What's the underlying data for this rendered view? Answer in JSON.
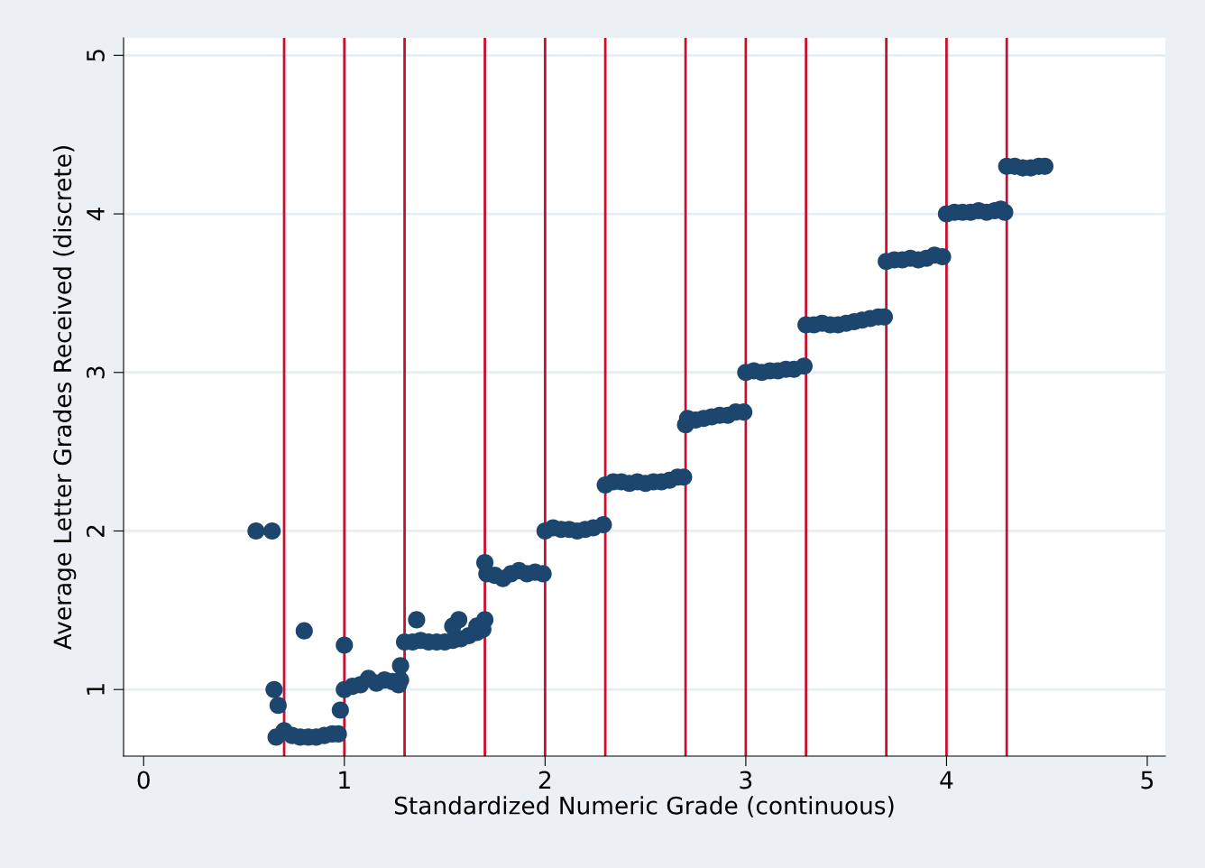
{
  "chart_data": {
    "type": "scatter",
    "xlabel": "Standardized Numeric Grade (continuous)",
    "ylabel": "Average Letter Grades Received (discrete)",
    "x": [
      0.56,
      0.64,
      0.65,
      0.67,
      0.8,
      0.98,
      1.0,
      1.28,
      1.36,
      1.54,
      1.57,
      1.66,
      1.7,
      0.66,
      0.7,
      0.74,
      0.78,
      0.82,
      0.86,
      0.9,
      0.94,
      0.97,
      1.0,
      1.04,
      1.08,
      1.12,
      1.16,
      1.2,
      1.24,
      1.27,
      1.28,
      1.3,
      1.34,
      1.38,
      1.42,
      1.46,
      1.5,
      1.54,
      1.58,
      1.62,
      1.66,
      1.69,
      1.7,
      1.71,
      1.75,
      1.79,
      1.83,
      1.87,
      1.91,
      1.95,
      1.99,
      2.0,
      2.04,
      2.08,
      2.12,
      2.16,
      2.2,
      2.24,
      2.29,
      2.3,
      2.34,
      2.38,
      2.42,
      2.46,
      2.5,
      2.54,
      2.58,
      2.62,
      2.66,
      2.69,
      2.7,
      2.71,
      2.75,
      2.79,
      2.83,
      2.87,
      2.91,
      2.95,
      2.99,
      3.0,
      3.04,
      3.08,
      3.12,
      3.16,
      3.2,
      3.24,
      3.29,
      3.3,
      3.34,
      3.38,
      3.42,
      3.46,
      3.5,
      3.54,
      3.58,
      3.62,
      3.66,
      3.69,
      3.7,
      3.74,
      3.78,
      3.82,
      3.86,
      3.9,
      3.94,
      3.98,
      4.0,
      4.04,
      4.08,
      4.12,
      4.16,
      4.2,
      4.24,
      4.27,
      4.29,
      4.3,
      4.34,
      4.38,
      4.42,
      4.46,
      4.49
    ],
    "values": [
      2.0,
      2.0,
      1.0,
      0.9,
      1.37,
      0.87,
      1.28,
      1.15,
      1.44,
      1.4,
      1.44,
      1.4,
      1.44,
      0.7,
      0.74,
      0.71,
      0.7,
      0.7,
      0.7,
      0.71,
      0.72,
      0.72,
      1.0,
      1.02,
      1.03,
      1.07,
      1.04,
      1.06,
      1.05,
      1.03,
      1.06,
      1.3,
      1.3,
      1.31,
      1.3,
      1.3,
      1.3,
      1.31,
      1.32,
      1.34,
      1.36,
      1.38,
      1.8,
      1.73,
      1.72,
      1.7,
      1.73,
      1.75,
      1.73,
      1.74,
      1.73,
      2.0,
      2.02,
      2.01,
      2.01,
      2.0,
      2.01,
      2.02,
      2.04,
      2.29,
      2.31,
      2.31,
      2.3,
      2.31,
      2.3,
      2.31,
      2.31,
      2.32,
      2.34,
      2.34,
      2.67,
      2.71,
      2.7,
      2.71,
      2.72,
      2.73,
      2.73,
      2.75,
      2.75,
      3.0,
      3.01,
      3.0,
      3.01,
      3.01,
      3.02,
      3.02,
      3.04,
      3.3,
      3.3,
      3.31,
      3.3,
      3.3,
      3.31,
      3.32,
      3.33,
      3.34,
      3.35,
      3.35,
      3.7,
      3.71,
      3.71,
      3.72,
      3.71,
      3.72,
      3.74,
      3.73,
      4.0,
      4.01,
      4.01,
      4.01,
      4.02,
      4.01,
      4.02,
      4.03,
      4.01,
      4.3,
      4.3,
      4.29,
      4.29,
      4.3,
      4.3
    ],
    "color": "#1c466e",
    "marker": "circle",
    "xlim": [
      -0.1,
      5.09
    ],
    "ylim": [
      0.58,
      5.11
    ],
    "xticks": [
      0,
      1,
      2,
      3,
      4,
      5
    ],
    "yticks": [
      1,
      2,
      3,
      4,
      5
    ],
    "grid": "y",
    "ref_lines": [
      {
        "axis": "x",
        "value": 0.7,
        "color": "#c8102e"
      },
      {
        "axis": "x",
        "value": 1,
        "color": "#c8102e"
      },
      {
        "axis": "x",
        "value": 1.3,
        "color": "#c8102e"
      },
      {
        "axis": "x",
        "value": 1.7,
        "color": "#c8102e"
      },
      {
        "axis": "x",
        "value": 2,
        "color": "#c8102e"
      },
      {
        "axis": "x",
        "value": 2.3,
        "color": "#c8102e"
      },
      {
        "axis": "x",
        "value": 2.7,
        "color": "#c8102e"
      },
      {
        "axis": "x",
        "value": 3,
        "color": "#c8102e"
      },
      {
        "axis": "x",
        "value": 3.3,
        "color": "#c8102e"
      },
      {
        "axis": "x",
        "value": 3.7,
        "color": "#c8102e"
      },
      {
        "axis": "x",
        "value": 4,
        "color": "#c8102e"
      },
      {
        "axis": "x",
        "value": 4.3,
        "color": "#c8102e"
      }
    ]
  }
}
